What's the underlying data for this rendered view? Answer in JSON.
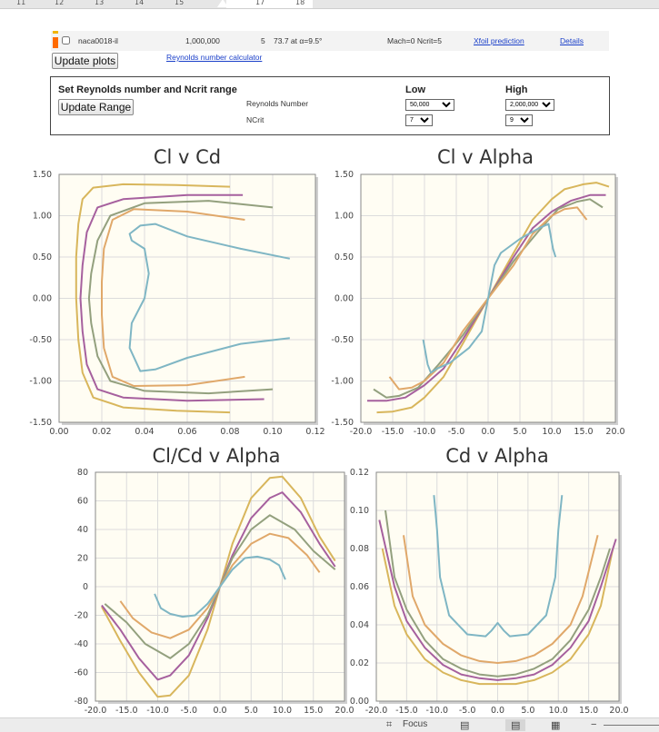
{
  "ruler": {
    "ticks": [
      "11",
      "12",
      "13",
      "14",
      "15",
      "17",
      "18"
    ]
  },
  "airfoil_row": {
    "name": "naca0018-il",
    "reynolds": "1,000,000",
    "ncrit": "5",
    "max_clcd": "73.7 at α=9.5°",
    "conditions": "Mach=0 Ncrit=5",
    "xfoil_link": "Xfoil prediction",
    "details_link": "Details",
    "color": "#ff6a00"
  },
  "update_plots_label": "Update plots",
  "reynolds_calc_link": "Reynolds number calculator",
  "range_box": {
    "title": "Set Reynolds number and Ncrit range",
    "update_range_label": "Update Range",
    "re_label": "Reynolds Number",
    "ncrit_label": "NCrit",
    "low_header": "Low",
    "high_header": "High",
    "re_low": "50,000",
    "re_high": "2,000,000",
    "ncrit_low": "7",
    "ncrit_high": "9"
  },
  "status_bar": {
    "focus_label": "Focus"
  },
  "series_colors": [
    "#d8b65c",
    "#a6609e",
    "#93a07e",
    "#e0a86a",
    "#7fb6c4"
  ],
  "chart_data": [
    {
      "type": "line",
      "title": "Cl v Cd",
      "xlim": [
        0,
        0.12
      ],
      "ylim": [
        -1.5,
        1.5
      ],
      "xticks": [
        0,
        0.02,
        0.04,
        0.06,
        0.08,
        0.1,
        0.12
      ],
      "xticklabels": [
        "0.00",
        "0.02",
        "0.04",
        "0.06",
        "0.08",
        "0.10",
        "0.12"
      ],
      "yticks": [
        -1.5,
        -1,
        -0.5,
        0,
        0.5,
        1,
        1.5
      ],
      "yticklabels": [
        "-1.50",
        "-1.00",
        "-0.50",
        "0.00",
        "0.50",
        "1.00",
        "1.50"
      ],
      "grid": true,
      "series": [
        {
          "color": "#d8b65c",
          "x": [
            0.08,
            0.055,
            0.03,
            0.016,
            0.011,
            0.009,
            0.008,
            0.008,
            0.009,
            0.011,
            0.016,
            0.03,
            0.055,
            0.08
          ],
          "y": [
            -1.38,
            -1.36,
            -1.32,
            -1.2,
            -0.9,
            -0.5,
            0,
            0.5,
            0.9,
            1.2,
            1.34,
            1.38,
            1.37,
            1.35
          ]
        },
        {
          "color": "#a6609e",
          "x": [
            0.096,
            0.06,
            0.03,
            0.018,
            0.013,
            0.011,
            0.01,
            0.011,
            0.013,
            0.018,
            0.03,
            0.06,
            0.086
          ],
          "y": [
            -1.22,
            -1.24,
            -1.2,
            -1.1,
            -0.8,
            -0.4,
            0,
            0.4,
            0.8,
            1.1,
            1.2,
            1.25,
            1.25
          ]
        },
        {
          "color": "#93a07e",
          "x": [
            0.1,
            0.07,
            0.04,
            0.024,
            0.018,
            0.015,
            0.014,
            0.015,
            0.018,
            0.024,
            0.04,
            0.07,
            0.1
          ],
          "y": [
            -1.1,
            -1.15,
            -1.12,
            -1.0,
            -0.7,
            -0.3,
            0,
            0.3,
            0.7,
            1.0,
            1.15,
            1.18,
            1.1
          ]
        },
        {
          "color": "#e0a86a",
          "x": [
            0.087,
            0.06,
            0.035,
            0.025,
            0.021,
            0.02,
            0.02,
            0.021,
            0.025,
            0.035,
            0.06,
            0.087
          ],
          "y": [
            -0.95,
            -1.05,
            -1.06,
            -0.95,
            -0.6,
            -0.2,
            0.2,
            0.6,
            0.95,
            1.08,
            1.05,
            0.95
          ]
        },
        {
          "color": "#7fb6c4",
          "x": [
            0.108,
            0.085,
            0.06,
            0.045,
            0.038,
            0.033,
            0.034,
            0.04,
            0.042,
            0.04,
            0.034,
            0.033,
            0.038,
            0.045,
            0.06,
            0.085,
            0.108
          ],
          "y": [
            -0.48,
            -0.55,
            -0.72,
            -0.86,
            -0.88,
            -0.6,
            -0.3,
            0,
            0.3,
            0.6,
            0.7,
            0.78,
            0.88,
            0.9,
            0.75,
            0.6,
            0.48
          ]
        }
      ]
    },
    {
      "type": "line",
      "title": "Cl v Alpha",
      "xlim": [
        -20,
        20
      ],
      "ylim": [
        -1.5,
        1.5
      ],
      "xticks": [
        -20,
        -15,
        -10,
        -5,
        0,
        5,
        10,
        15,
        20
      ],
      "xticklabels": [
        "-20.0",
        "-15.0",
        "-10.0",
        "-5.0",
        "0.0",
        "5.0",
        "10.0",
        "15.0",
        "20.0"
      ],
      "yticks": [
        -1.5,
        -1,
        -0.5,
        0,
        0.5,
        1,
        1.5
      ],
      "yticklabels": [
        "-1.50",
        "-1.00",
        "-0.50",
        "0.00",
        "0.50",
        "1.00",
        "1.50"
      ],
      "grid": true,
      "series": [
        {
          "color": "#d8b65c",
          "x": [
            -17.5,
            -15,
            -12,
            -10,
            -7,
            -4,
            0,
            4,
            7,
            10,
            12,
            15,
            17,
            19
          ],
          "y": [
            -1.38,
            -1.37,
            -1.32,
            -1.2,
            -0.95,
            -0.55,
            0,
            0.55,
            0.95,
            1.2,
            1.32,
            1.38,
            1.4,
            1.35
          ]
        },
        {
          "color": "#a6609e",
          "x": [
            -19,
            -16,
            -13,
            -10,
            -7,
            -4,
            0,
            4,
            7,
            10,
            13,
            16,
            18.5
          ],
          "y": [
            -1.24,
            -1.24,
            -1.2,
            -1.05,
            -0.85,
            -0.5,
            0,
            0.5,
            0.85,
            1.05,
            1.18,
            1.25,
            1.25
          ]
        },
        {
          "color": "#93a07e",
          "x": [
            -18,
            -16,
            -14,
            -11,
            -8,
            -4,
            0,
            4,
            8,
            11,
            14,
            16,
            18
          ],
          "y": [
            -1.1,
            -1.2,
            -1.18,
            -1.08,
            -0.82,
            -0.45,
            0,
            0.45,
            0.82,
            1.08,
            1.17,
            1.2,
            1.1
          ]
        },
        {
          "color": "#e0a86a",
          "x": [
            -15.5,
            -14,
            -12,
            -10,
            -7,
            -4,
            0,
            4,
            7,
            10,
            12,
            14,
            15.5
          ],
          "y": [
            -0.95,
            -1.1,
            -1.08,
            -1.0,
            -0.78,
            -0.4,
            0,
            0.4,
            0.78,
            1.0,
            1.08,
            1.1,
            0.95
          ]
        },
        {
          "color": "#7fb6c4",
          "x": [
            -10.2,
            -9.5,
            -9,
            -8,
            -6,
            -3,
            -1,
            0,
            1,
            2,
            5,
            8,
            9.5,
            10.2,
            10.6
          ],
          "y": [
            -0.5,
            -0.8,
            -0.9,
            -0.85,
            -0.78,
            -0.6,
            -0.4,
            0,
            0.4,
            0.55,
            0.72,
            0.85,
            0.9,
            0.6,
            0.5
          ]
        }
      ]
    },
    {
      "type": "line",
      "title": "Cl/Cd v Alpha",
      "xlim": [
        -20,
        20
      ],
      "ylim": [
        -80,
        80
      ],
      "xticks": [
        -20,
        -15,
        -10,
        -5,
        0,
        5,
        10,
        15,
        20
      ],
      "xticklabels": [
        "-20.0",
        "-15.0",
        "-10.0",
        "-5.0",
        "0.0",
        "5.0",
        "10.0",
        "15.0",
        "20.0"
      ],
      "yticks": [
        -80,
        -60,
        -40,
        -20,
        0,
        20,
        40,
        60,
        80
      ],
      "yticklabels": [
        "-80",
        "-60",
        "-40",
        "-20",
        "0",
        "20",
        "40",
        "60",
        "80"
      ],
      "grid": true,
      "series": [
        {
          "color": "#d8b65c",
          "x": [
            -19,
            -16,
            -13,
            -10,
            -8,
            -5,
            -2,
            0,
            2,
            5,
            8,
            10,
            13,
            16,
            18.5
          ],
          "y": [
            -14,
            -38,
            -60,
            -77,
            -76,
            -62,
            -30,
            0,
            30,
            62,
            76,
            77,
            62,
            35,
            18
          ]
        },
        {
          "color": "#a6609e",
          "x": [
            -19,
            -16,
            -13,
            -10,
            -8,
            -5,
            -2,
            0,
            2,
            5,
            8,
            10,
            13,
            16,
            18.5
          ],
          "y": [
            -13,
            -30,
            -50,
            -65,
            -62,
            -48,
            -22,
            0,
            22,
            48,
            62,
            66,
            52,
            30,
            14
          ]
        },
        {
          "color": "#93a07e",
          "x": [
            -18.5,
            -15,
            -12,
            -8,
            -5,
            -2,
            0,
            2,
            5,
            8,
            12,
            15,
            18.5
          ],
          "y": [
            -12,
            -25,
            -40,
            -50,
            -40,
            -20,
            0,
            20,
            40,
            50,
            40,
            25,
            12
          ]
        },
        {
          "color": "#e0a86a",
          "x": [
            -16,
            -14,
            -11,
            -8,
            -5,
            -2,
            0,
            2,
            5,
            8,
            11,
            14,
            16
          ],
          "y": [
            -10,
            -22,
            -32,
            -36,
            -30,
            -15,
            0,
            15,
            30,
            37,
            34,
            22,
            10
          ]
        },
        {
          "color": "#7fb6c4",
          "x": [
            -10.5,
            -9.5,
            -8,
            -6,
            -4,
            -2,
            0,
            2,
            4,
            6,
            8,
            9.5,
            10.5
          ],
          "y": [
            -5,
            -15,
            -19,
            -21,
            -20,
            -12,
            0,
            12,
            20,
            21,
            19,
            15,
            5
          ]
        }
      ]
    },
    {
      "type": "line",
      "title": "Cd v Alpha",
      "xlim": [
        -20,
        20
      ],
      "ylim": [
        0,
        0.12
      ],
      "xticks": [
        -20,
        -15,
        -10,
        -5,
        0,
        5,
        10,
        15,
        20
      ],
      "xticklabels": [
        "-20.0",
        "-15.0",
        "-10.0",
        "-5.0",
        "0.0",
        "5.0",
        "10.0",
        "15.0",
        "20.0"
      ],
      "yticks": [
        0,
        0.02,
        0.04,
        0.06,
        0.08,
        0.1,
        0.12
      ],
      "yticklabels": [
        "0.00",
        "0.02",
        "0.04",
        "0.06",
        "0.08",
        "0.10",
        "0.12"
      ],
      "grid": true,
      "series": [
        {
          "color": "#d8b65c",
          "x": [
            -19,
            -17,
            -15,
            -12,
            -9,
            -6,
            -3,
            0,
            3,
            6,
            9,
            12,
            15,
            17,
            19
          ],
          "y": [
            0.08,
            0.05,
            0.035,
            0.022,
            0.015,
            0.011,
            0.009,
            0.009,
            0.009,
            0.011,
            0.015,
            0.022,
            0.035,
            0.05,
            0.08
          ]
        },
        {
          "color": "#a6609e",
          "x": [
            -19.5,
            -17,
            -15,
            -12,
            -9,
            -6,
            -3,
            0,
            3,
            6,
            9,
            12,
            15,
            17,
            19.5
          ],
          "y": [
            0.095,
            0.06,
            0.042,
            0.028,
            0.019,
            0.014,
            0.012,
            0.011,
            0.012,
            0.014,
            0.019,
            0.028,
            0.042,
            0.06,
            0.085
          ]
        },
        {
          "color": "#93a07e",
          "x": [
            -18.5,
            -17,
            -15,
            -12,
            -9,
            -6,
            -3,
            0,
            3,
            6,
            9,
            12,
            15,
            17,
            18.5
          ],
          "y": [
            0.1,
            0.065,
            0.048,
            0.032,
            0.022,
            0.017,
            0.014,
            0.013,
            0.014,
            0.017,
            0.022,
            0.032,
            0.048,
            0.065,
            0.08
          ]
        },
        {
          "color": "#e0a86a",
          "x": [
            -15.5,
            -14,
            -12,
            -9,
            -6,
            -3,
            0,
            3,
            6,
            9,
            12,
            14,
            16.5
          ],
          "y": [
            0.087,
            0.055,
            0.04,
            0.03,
            0.024,
            0.021,
            0.02,
            0.021,
            0.024,
            0.03,
            0.04,
            0.055,
            0.087
          ]
        },
        {
          "color": "#7fb6c4",
          "x": [
            -10.5,
            -10,
            -9.5,
            -8,
            -5,
            -2,
            -1,
            0,
            1,
            2,
            5,
            8,
            9.5,
            10,
            10.6
          ],
          "y": [
            0.108,
            0.09,
            0.065,
            0.045,
            0.035,
            0.034,
            0.037,
            0.041,
            0.037,
            0.034,
            0.035,
            0.045,
            0.065,
            0.09,
            0.108
          ]
        }
      ]
    }
  ]
}
